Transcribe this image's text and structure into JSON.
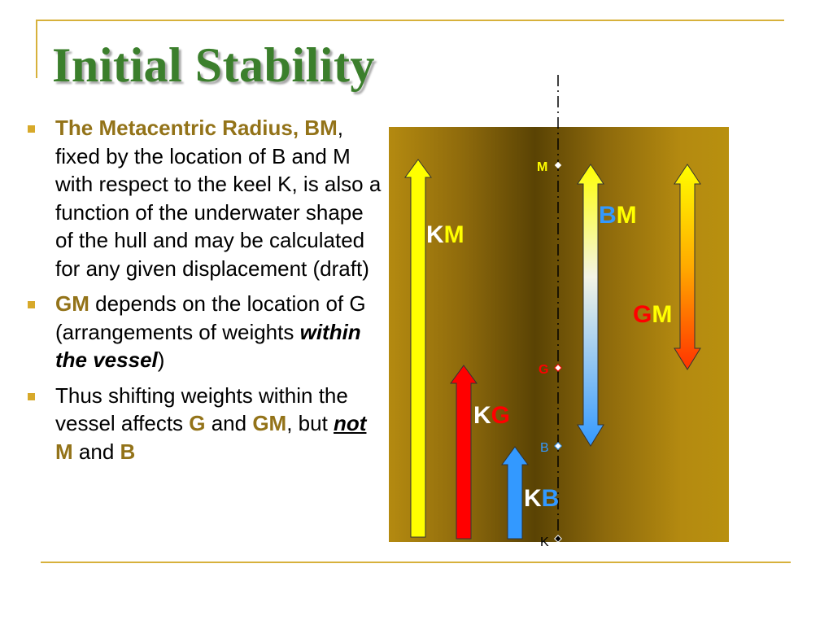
{
  "title": "Initial Stability",
  "bullet1": {
    "hl": "The Metacentric Radius, BM",
    "text": ", fixed by the location of B and M with respect to the keel K, is also a function of the underwater shape of the hull and may be calculated for any given displacement (draft)"
  },
  "bullet2": {
    "hl": "GM",
    "text1": " depends on the location of G (arrangements of weights ",
    "italic": "within the vessel",
    "text2": ")"
  },
  "bullet3": {
    "text1": "Thus shifting weights within the vessel affects ",
    "g": "G",
    "text2": " and ",
    "gm": "GM",
    "text3": ", but ",
    "not": "not",
    "text4": " ",
    "m": "M",
    "text5": " and ",
    "b": "B"
  },
  "diagram": {
    "points": {
      "m": "M",
      "g": "G",
      "b": "B",
      "k": "K"
    },
    "labels": {
      "km": {
        "a": "K",
        "b": "M"
      },
      "bm": {
        "a": "B",
        "b": "M"
      },
      "gm": {
        "a": "G",
        "b": "M"
      },
      "kg": {
        "a": "K",
        "b": "G"
      },
      "kb": {
        "a": "K",
        "b": "B"
      }
    }
  },
  "colors": {
    "title": "#3b7f2c",
    "rule": "#d7b13b",
    "highlight": "#937319",
    "red": "#ff0000",
    "blue": "#3399ff",
    "yellow": "#ffff00"
  }
}
